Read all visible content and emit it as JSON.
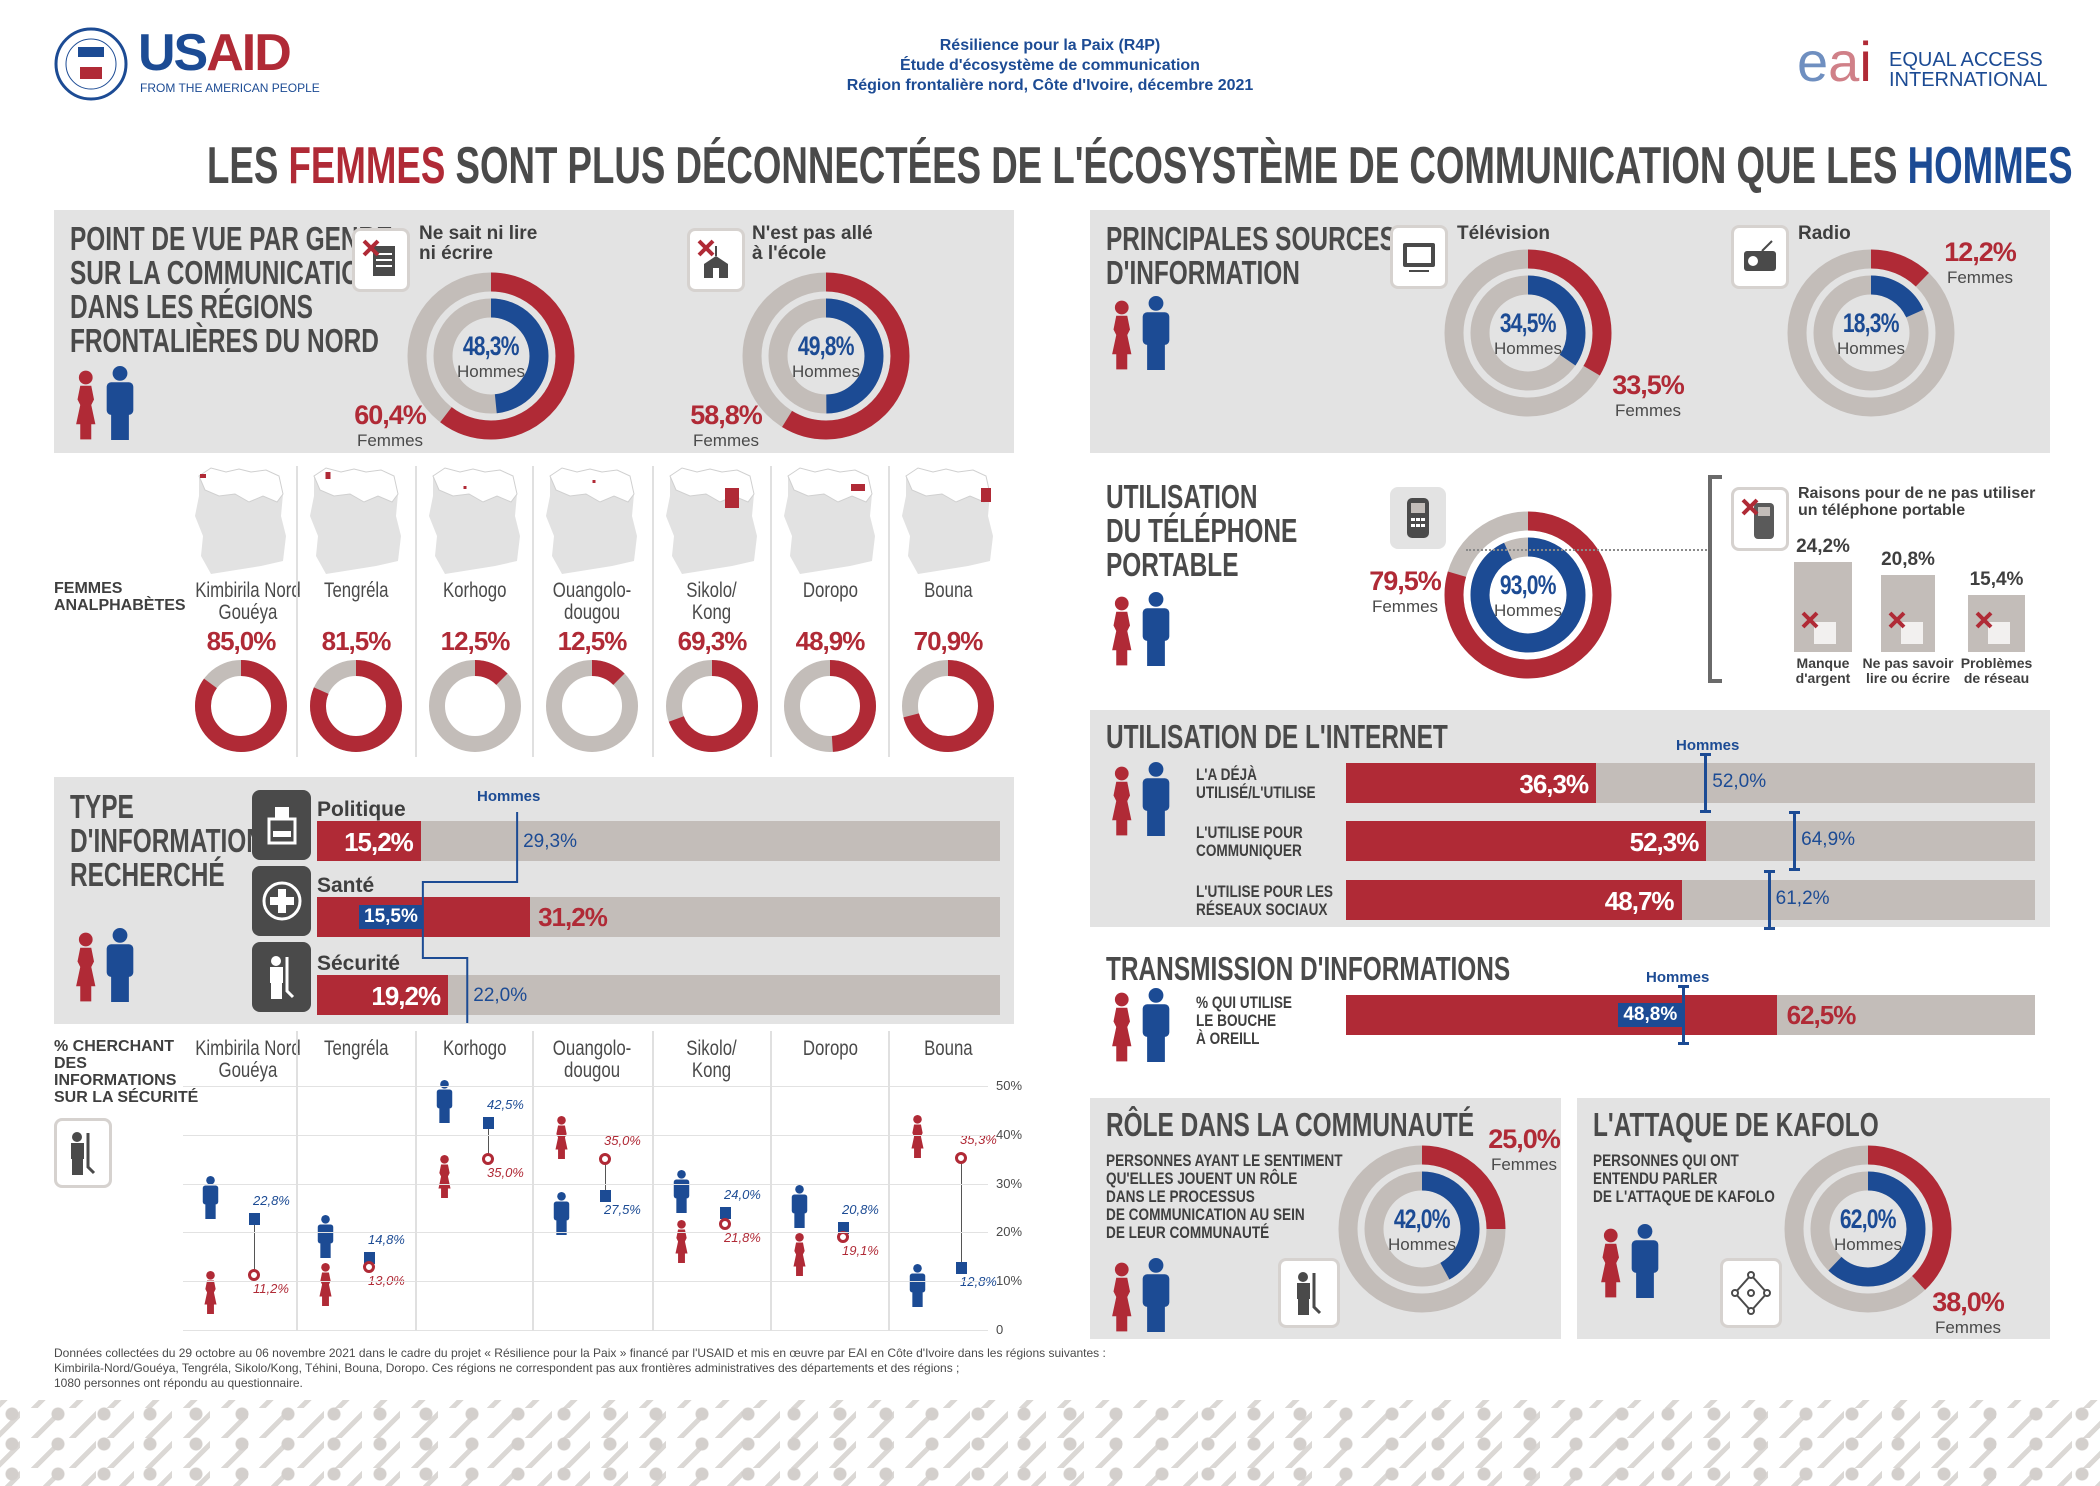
{
  "colors": {
    "women": "#b02a36",
    "men": "#1c4b94",
    "ring": "#c3bdb9",
    "panel": "#e3e3e3"
  },
  "header": {
    "usaid": {
      "name_us": "US",
      "name_aid": "AID",
      "tagline": "FROM THE AMERICAN PEOPLE"
    },
    "center_lines": [
      "Résilience pour la Paix (R4P)",
      "Étude d'écosystème de communication",
      "Région frontalière nord, Côte d'Ivoire, décembre 2021"
    ],
    "eai": {
      "mark_e": "e",
      "mark_a": "a",
      "mark_i": "i",
      "name1": "EQUAL ACCESS",
      "name2": "INTERNATIONAL"
    }
  },
  "headline": {
    "p1": "LES ",
    "women": "FEMMES",
    "p2": " SONT PLUS DÉCONNECTÉES DE L'ÉCOSYSTÈME DE COMMUNICATION QUE LES ",
    "men": "HOMMES"
  },
  "pov": {
    "title_lines": [
      "POINT DE VUE PAR GENRE",
      "SUR LA COMMUNICATION",
      "DANS LES RÉGIONS",
      "FRONTALIÈRES DU NORD"
    ],
    "items": [
      {
        "label_lines": [
          "Ne sait ni lire",
          "ni écrire"
        ],
        "men": 48.3,
        "men_label": "48,3%",
        "men_word": "Hommes",
        "women": 60.4,
        "women_label": "60,4%",
        "women_word": "Femmes"
      },
      {
        "label_lines": [
          "N'est pas allé",
          "à l'école"
        ],
        "men": 49.8,
        "men_label": "49,8%",
        "men_word": "Hommes",
        "women": 58.8,
        "women_label": "58,8%",
        "women_word": "Femmes"
      }
    ]
  },
  "sources": {
    "title_lines": [
      "PRINCIPALES SOURCES",
      "D'INFORMATION"
    ],
    "items": [
      {
        "label": "Télévision",
        "men": 34.5,
        "men_label": "34,5%",
        "men_word": "Hommes",
        "women": 33.5,
        "women_label": "33,5%",
        "women_word": "Femmes"
      },
      {
        "label": "Radio",
        "men": 18.3,
        "men_label": "18,3%",
        "men_word": "Hommes",
        "women": 12.2,
        "women_label": "12,2%",
        "women_word": "Femmes"
      }
    ]
  },
  "literacy": {
    "label_lines": [
      "FEMMES",
      "ANALPHABÈTES"
    ]
  },
  "regions": [
    {
      "name_lines": [
        "Kimbirila Nord",
        "Gouéya"
      ],
      "illiterate": 85.0,
      "illiterate_label": "85,0%",
      "sec_men": 22.8,
      "sec_men_label": "22,8%",
      "sec_women": 11.2,
      "sec_women_label": "11,2%"
    },
    {
      "name_lines": [
        "Tengréla",
        ""
      ],
      "illiterate": 81.5,
      "illiterate_label": "81,5%",
      "sec_men": 14.8,
      "sec_men_label": "14,8%",
      "sec_women": 13.0,
      "sec_women_label": "13,0%"
    },
    {
      "name_lines": [
        "Korhogo",
        ""
      ],
      "illiterate": 12.5,
      "illiterate_label": "12,5%",
      "sec_men": 42.5,
      "sec_men_label": "42,5%",
      "sec_women": 35.0,
      "sec_women_label": "35,0%"
    },
    {
      "name_lines": [
        "Ouangolo-",
        "dougou"
      ],
      "illiterate": 12.5,
      "illiterate_label": "12,5%",
      "sec_men": 27.5,
      "sec_men_label": "27,5%",
      "sec_women": 35.0,
      "sec_women_label": "35,0%"
    },
    {
      "name_lines": [
        "Sikolo/",
        "Kong"
      ],
      "illiterate": 69.3,
      "illiterate_label": "69,3%",
      "sec_men": 24.0,
      "sec_men_label": "24,0%",
      "sec_women": 21.8,
      "sec_women_label": "21,8%"
    },
    {
      "name_lines": [
        "Doropo",
        ""
      ],
      "illiterate": 48.9,
      "illiterate_label": "48,9%",
      "sec_men": 20.8,
      "sec_men_label": "20,8%",
      "sec_women": 19.1,
      "sec_women_label": "19,1%"
    },
    {
      "name_lines": [
        "Bouna",
        ""
      ],
      "illiterate": 70.9,
      "illiterate_label": "70,9%",
      "sec_men": 12.8,
      "sec_men_label": "12,8%",
      "sec_women": 35.3,
      "sec_women_label": "35,3%"
    }
  ],
  "info_type": {
    "title_lines": [
      "TYPE",
      "D'INFORMATION",
      "RECHERCHÉ"
    ],
    "men_word": "Hommes",
    "items": [
      {
        "label": "Politique",
        "women": 15.2,
        "women_label": "15,2%",
        "men": 29.3,
        "men_label": "29,3%"
      },
      {
        "label": "Santé",
        "women": 31.2,
        "women_label": "31,2%",
        "men": 15.5,
        "men_label": "15,5%"
      },
      {
        "label": "Sécurité",
        "women": 19.2,
        "women_label": "19,2%",
        "men": 22.0,
        "men_label": "22,0%"
      }
    ]
  },
  "security_chart": {
    "label_lines": [
      "% CHERCHANT",
      "DES",
      "INFORMATIONS",
      "SUR LA SÉCURITÉ"
    ],
    "y_ticks": [
      {
        "v": 0,
        "label": "0"
      },
      {
        "v": 10,
        "label": "10%"
      },
      {
        "v": 20,
        "label": "20%"
      },
      {
        "v": 30,
        "label": "30%"
      },
      {
        "v": 40,
        "label": "40%"
      },
      {
        "v": 50,
        "label": "50%"
      }
    ],
    "ylim": [
      0,
      50
    ]
  },
  "phone": {
    "title_lines": [
      "UTILISATION",
      "DU TÉLÉPHONE",
      "PORTABLE"
    ],
    "women": 79.5,
    "women_label": "79,5%",
    "women_word": "Femmes",
    "men": 93.0,
    "men_label": "93,0%",
    "men_word": "Hommes",
    "reasons": {
      "title_lines": [
        "Raisons pour de ne pas utiliser",
        "un téléphone portable"
      ],
      "items": [
        {
          "pct": 24.2,
          "label": "24,2%",
          "text_lines": [
            "Manque",
            "d'argent"
          ]
        },
        {
          "pct": 20.8,
          "label": "20,8%",
          "text_lines": [
            "Ne pas savoir",
            "lire ou écrire"
          ]
        },
        {
          "pct": 15.4,
          "label": "15,4%",
          "text_lines": [
            "Problèmes",
            "de réseau"
          ]
        }
      ]
    }
  },
  "internet": {
    "title": "UTILISATION DE L'INTERNET",
    "men_word": "Hommes",
    "items": [
      {
        "label_lines": [
          "L'A DÉJÀ",
          "UTILISÉ/L'UTILISE"
        ],
        "women": 36.3,
        "women_label": "36,3%",
        "men": 52.0,
        "men_label": "52,0%"
      },
      {
        "label_lines": [
          "L'UTILISE POUR",
          "COMMUNIQUER"
        ],
        "women": 52.3,
        "women_label": "52,3%",
        "men": 64.9,
        "men_label": "64,9%"
      },
      {
        "label_lines": [
          "L'UTILISE POUR LES",
          "RÉSEAUX SOCIAUX"
        ],
        "women": 48.7,
        "women_label": "48,7%",
        "men": 61.2,
        "men_label": "61,2%"
      }
    ]
  },
  "transmission": {
    "title": "TRANSMISSION D'INFORMATIONS",
    "men_word": "Hommes",
    "label_lines": [
      "% QUI UTILISE",
      "LE BOUCHE",
      "À OREILL"
    ],
    "women": 62.5,
    "women_label": "62,5%",
    "men": 48.8,
    "men_label": "48,8%"
  },
  "role": {
    "title": "RÔLE DANS LA COMMUNAUTÉ",
    "text_lines": [
      "PERSONNES AYANT LE SENTIMENT",
      "QU'ELLES JOUENT UN RÔLE",
      "DANS LE PROCESSUS",
      "DE COMMUNICATION AU SEIN",
      "DE LEUR COMMUNAUTÉ"
    ],
    "men": 42.0,
    "men_label": "42,0%",
    "men_word": "Hommes",
    "women": 25.0,
    "women_label": "25,0%",
    "women_word": "Femmes"
  },
  "kafolo": {
    "title": "L'ATTAQUE DE KAFOLO",
    "text_lines": [
      "PERSONNES QUI ONT",
      "ENTENDU PARLER",
      "DE L'ATTAQUE DE KAFOLO"
    ],
    "men": 62.0,
    "men_label": "62,0%",
    "men_word": "Hommes",
    "women": 38.0,
    "women_label": "38,0%",
    "women_word": "Femmes"
  },
  "footnote": {
    "lines": [
      "Données collectées du 29 octobre au 06 novembre 2021 dans le cadre du projet « Résilience pour la Paix » financé par l'USAID et mis en œuvre par EAI en Côte d'Ivoire dans les régions suivantes :",
      "Kimbirila-Nord/Gouéya, Tengréla, Sikolo/Kong, Téhini, Bouna, Doropo. Ces régions ne correspondent pas aux frontières administratives des départements et des régions ;",
      "1080 personnes ont répondu au questionnaire."
    ]
  }
}
